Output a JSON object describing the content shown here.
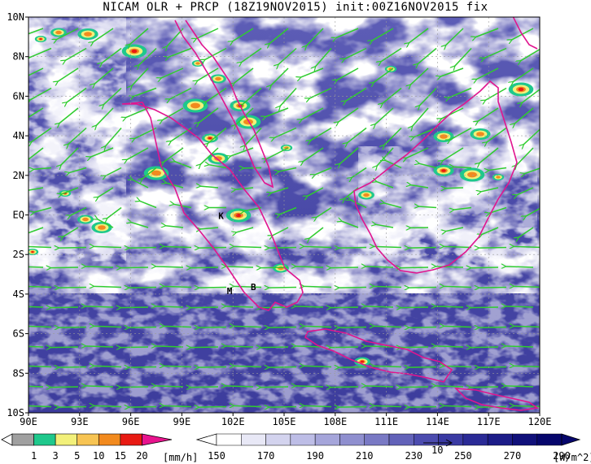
{
  "title": "NICAM OLR + PRCP (18Z19NOV2015) init:00Z16NOV2015 fix",
  "map": {
    "lon_range": [
      90,
      120
    ],
    "lat_range": [
      -10,
      10
    ],
    "lon_ticks": [
      "90E",
      "93E",
      "96E",
      "99E",
      "102E",
      "105E",
      "108E",
      "111E",
      "114E",
      "117E",
      "120E"
    ],
    "lat_ticks": [
      "10N",
      "8N",
      "6N",
      "4N",
      "2N",
      "EQ",
      "2S",
      "4S",
      "6S",
      "8S",
      "10S"
    ],
    "station_labels": [
      {
        "text": "K",
        "lon": 101.3,
        "lat": -0.2
      },
      {
        "text": "M",
        "lon": 101.8,
        "lat": -4.0
      },
      {
        "text": "B",
        "lon": 103.2,
        "lat": -3.8
      }
    ],
    "colors": {
      "coast": "#e0158f",
      "wind": "#2fcc2f",
      "grid": "#777777"
    }
  },
  "prcp_colorbar": {
    "labels": [
      "1",
      "3",
      "5",
      "10",
      "15",
      "20"
    ],
    "unit": "[mm/h]",
    "colors": [
      "#a0a0a0",
      "#1fc88c",
      "#f2f07a",
      "#f7c453",
      "#f28a1e",
      "#e81a13",
      "#e8148e"
    ]
  },
  "olr_colorbar": {
    "labels": [
      "150",
      "170",
      "190",
      "210",
      "230",
      "250",
      "270",
      "290"
    ],
    "unit": "[W/m^2]",
    "vector_label": "10",
    "colors": [
      "#ffffff",
      "#e8e8f6",
      "#d3d3ee",
      "#bdbde6",
      "#a5a5da",
      "#8f8fcf",
      "#7979c4",
      "#6262b9",
      "#4c4caf",
      "#3a3aa3",
      "#2a2a96",
      "#1c1c88",
      "#10107a",
      "#06066c"
    ]
  }
}
